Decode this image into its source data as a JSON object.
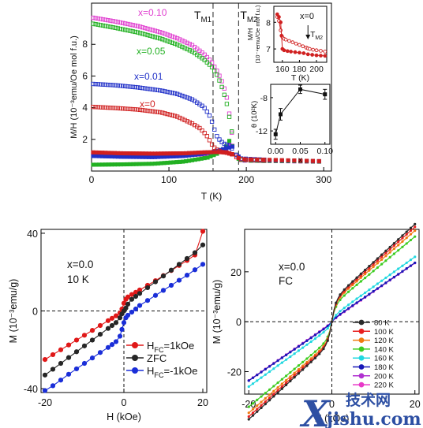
{
  "watermark": {
    "big_letter": "X",
    "cn_text": "技术网",
    "url": "jishu.com",
    "color": "#2d4fa3"
  },
  "chart_data": [
    {
      "type": "scatter",
      "id": "top-main",
      "xlabel": "T (K)",
      "ylabel": "M/H (10⁻³emu/Oe mol f.u.)",
      "xlim": [
        0,
        310
      ],
      "ylim": [
        0,
        10.6
      ],
      "xticks": [
        0,
        100,
        200,
        300
      ],
      "yticks": [
        2,
        4,
        6,
        8
      ],
      "vlines": [
        {
          "x": 157,
          "label": "T",
          "sub": "M1"
        },
        {
          "x": 190,
          "label": "T",
          "sub": "M2"
        }
      ],
      "series": [
        {
          "name": "x=0.10",
          "color": "#e040d0",
          "fc": [
            [
              2,
              9.68
            ],
            [
              30,
              9.45
            ],
            [
              60,
              9.15
            ],
            [
              90,
              8.75
            ],
            [
              110,
              8.4
            ],
            [
              130,
              7.95
            ],
            [
              145,
              7.4
            ],
            [
              155,
              6.9
            ],
            [
              163,
              6.25
            ],
            [
              170,
              5.5
            ],
            [
              175,
              4.6
            ],
            [
              179,
              3.3
            ],
            [
              182,
              2.1
            ],
            [
              185,
              1.2
            ],
            [
              190,
              0.7
            ],
            [
              230,
              0.62
            ],
            [
              300,
              0.58
            ]
          ],
          "zfc": [
            [
              2,
              1.1
            ],
            [
              40,
              1.02
            ],
            [
              80,
              0.98
            ],
            [
              120,
              1.0
            ],
            [
              145,
              1.05
            ],
            [
              165,
              1.2
            ],
            [
              175,
              1.45
            ],
            [
              180,
              1.8
            ],
            [
              184,
              1.4
            ],
            [
              188,
              0.9
            ],
            [
              195,
              0.66
            ],
            [
              300,
              0.58
            ]
          ]
        },
        {
          "name": "x=0.05",
          "color": "#22b022",
          "fc": [
            [
              2,
              9.3
            ],
            [
              30,
              9.05
            ],
            [
              60,
              8.75
            ],
            [
              90,
              8.35
            ],
            [
              110,
              8.0
            ],
            [
              130,
              7.55
            ],
            [
              145,
              7.05
            ],
            [
              155,
              6.6
            ],
            [
              163,
              6.0
            ],
            [
              170,
              5.1
            ],
            [
              175,
              4.2
            ],
            [
              180,
              2.9
            ],
            [
              183,
              1.9
            ],
            [
              186,
              1.1
            ],
            [
              192,
              0.72
            ],
            [
              230,
              0.64
            ],
            [
              300,
              0.6
            ]
          ],
          "zfc": [
            [
              2,
              0.4
            ],
            [
              40,
              0.42
            ],
            [
              80,
              0.46
            ],
            [
              120,
              0.6
            ],
            [
              150,
              0.85
            ],
            [
              165,
              1.15
            ],
            [
              175,
              1.6
            ],
            [
              180,
              2.1
            ],
            [
              183,
              1.3
            ],
            [
              188,
              0.8
            ],
            [
              200,
              0.66
            ],
            [
              300,
              0.6
            ]
          ]
        },
        {
          "name": "x=0.01",
          "color": "#2030c8",
          "fc": [
            [
              2,
              5.5
            ],
            [
              30,
              5.42
            ],
            [
              60,
              5.28
            ],
            [
              90,
              5.08
            ],
            [
              110,
              4.88
            ],
            [
              130,
              4.52
            ],
            [
              145,
              4.05
            ],
            [
              152,
              3.55
            ],
            [
              157,
              2.95
            ],
            [
              160,
              2.4
            ],
            [
              163,
              2.1
            ],
            [
              170,
              1.75
            ],
            [
              178,
              1.6
            ],
            [
              185,
              1.2
            ],
            [
              190,
              0.8
            ],
            [
              230,
              0.7
            ],
            [
              300,
              0.62
            ]
          ],
          "zfc": [
            [
              2,
              0.95
            ],
            [
              40,
              0.9
            ],
            [
              80,
              0.88
            ],
            [
              120,
              0.95
            ],
            [
              145,
              1.1
            ],
            [
              160,
              1.25
            ],
            [
              175,
              1.45
            ],
            [
              183,
              1.55
            ],
            [
              188,
              1.0
            ],
            [
              195,
              0.7
            ],
            [
              300,
              0.62
            ]
          ]
        },
        {
          "name": "x=0",
          "color": "#d02020",
          "fc": [
            [
              2,
              4.05
            ],
            [
              30,
              3.98
            ],
            [
              60,
              3.88
            ],
            [
              90,
              3.7
            ],
            [
              110,
              3.45
            ],
            [
              130,
              3.0
            ],
            [
              140,
              2.7
            ],
            [
              148,
              2.3
            ],
            [
              153,
              1.9
            ],
            [
              157,
              1.55
            ],
            [
              162,
              1.35
            ],
            [
              168,
              1.2
            ],
            [
              175,
              1.15
            ],
            [
              182,
              1.05
            ],
            [
              188,
              0.85
            ],
            [
              195,
              0.72
            ],
            [
              230,
              0.68
            ],
            [
              300,
              0.62
            ]
          ],
          "zfc": [
            [
              2,
              1.18
            ],
            [
              40,
              1.12
            ],
            [
              80,
              1.1
            ],
            [
              120,
              1.12
            ],
            [
              145,
              1.18
            ],
            [
              160,
              1.2
            ],
            [
              175,
              1.18
            ],
            [
              185,
              1.0
            ],
            [
              192,
              0.75
            ],
            [
              300,
              0.62
            ]
          ]
        }
      ]
    },
    {
      "type": "line",
      "id": "inset-top",
      "title": "x=0",
      "xlabel": "T (K)",
      "ylabel": "M/H",
      "ylabel2": "(10⁻⁴emu/Oe mol f.u.)",
      "xlim": [
        150,
        212
      ],
      "ylim": [
        6.5,
        8.6
      ],
      "xticks": [
        160,
        180,
        200
      ],
      "yticks": [
        7,
        8
      ],
      "marker": {
        "label": "T",
        "sub": "M2",
        "x": 190
      },
      "series": [
        {
          "name": "FC",
          "color": "#d02020",
          "fill": "#ffffff",
          "x": [
            154,
            156,
            158,
            160,
            162,
            164,
            168,
            172,
            176,
            180,
            184,
            188,
            190,
            192,
            196,
            200,
            205,
            210
          ],
          "y": [
            8.2,
            8.05,
            7.7,
            7.45,
            7.38,
            7.35,
            7.3,
            7.25,
            7.2,
            7.15,
            7.1,
            7.05,
            7.02,
            7.0,
            6.97,
            6.95,
            6.93,
            6.9
          ]
        },
        {
          "name": "ZFC",
          "color": "#d02020",
          "fill": "#d02020",
          "x": [
            154,
            156,
            158,
            159,
            160,
            162,
            166,
            170,
            175,
            180,
            185,
            190,
            195,
            200,
            205,
            210
          ],
          "y": [
            8.3,
            8.2,
            8.0,
            7.5,
            7.0,
            6.95,
            6.92,
            6.9,
            6.88,
            6.86,
            6.84,
            6.8,
            6.78,
            6.76,
            6.75,
            6.74
          ]
        }
      ]
    },
    {
      "type": "scatter",
      "id": "inset-bottom",
      "xlabel": "x",
      "ylabel": "θ (10²K)",
      "xlim": [
        -0.01,
        0.11
      ],
      "ylim": [
        -13.6,
        -6.4
      ],
      "xticks": [
        0.0,
        0.05,
        0.1
      ],
      "xticklabels": [
        "0.00",
        "0.05",
        "0.10"
      ],
      "yticks": [
        -12,
        -8
      ],
      "points": [
        {
          "x": 0.0,
          "y": -12.4,
          "err": 0.6
        },
        {
          "x": 0.01,
          "y": -10.0,
          "err": 0.7
        },
        {
          "x": 0.05,
          "y": -7.0,
          "err": 0.5
        },
        {
          "x": 0.1,
          "y": -7.6,
          "err": 0.6
        }
      ]
    },
    {
      "type": "line",
      "id": "bottom-left",
      "annotation": [
        "x=0.0",
        "10 K"
      ],
      "xlabel": "H (kOe)",
      "ylabel": "M (10⁻³emu/g)",
      "xlim": [
        -21,
        21
      ],
      "ylim": [
        -42,
        42
      ],
      "xticks": [
        -20,
        0,
        20
      ],
      "yticks": [
        -40,
        0,
        40
      ],
      "series": [
        {
          "name": "H",
          "sub": "FC",
          "suffix": "=1kOe",
          "color": "#e01818",
          "x": [
            -20,
            -18,
            -16,
            -14,
            -12,
            -10,
            -8,
            -6,
            -4,
            -3,
            -2,
            -1,
            -0.5,
            0,
            0.5,
            1,
            2,
            3,
            4,
            6,
            8,
            10,
            12,
            14,
            16,
            18,
            20
          ],
          "y": [
            -25,
            -22.5,
            -20,
            -17.5,
            -15,
            -12.5,
            -10,
            -7.5,
            -5,
            -3.8,
            -2.5,
            -1,
            1,
            4,
            6,
            7.2,
            8.5,
            9.6,
            10.8,
            13.2,
            15.6,
            18.2,
            20.8,
            23.4,
            26,
            28.8,
            41
          ]
        },
        {
          "name": "ZFC",
          "sub": "",
          "suffix": "",
          "color": "#262626",
          "x": [
            -20,
            -18,
            -16,
            -14,
            -12,
            -10,
            -8,
            -6,
            -4,
            -3,
            -2,
            -1,
            -0.5,
            0,
            0.5,
            1,
            2,
            3,
            4,
            6,
            8,
            10,
            12,
            14,
            16,
            18,
            20
          ],
          "y": [
            -33,
            -30,
            -27,
            -24,
            -21,
            -18,
            -15,
            -12,
            -9,
            -7.5,
            -6,
            -3.5,
            -1.5,
            0,
            1.5,
            3.5,
            6,
            7.5,
            9,
            12,
            15,
            18,
            21,
            24,
            27,
            30,
            34
          ]
        },
        {
          "name": "H",
          "sub": "FC",
          "suffix": "=-1kOe",
          "color": "#1a2ed8",
          "x": [
            -20,
            -18,
            -16,
            -14,
            -12,
            -10,
            -8,
            -6,
            -4,
            -3,
            -2,
            -1,
            -0.5,
            0,
            0.5,
            1,
            2,
            3,
            4,
            6,
            8,
            10,
            12,
            14,
            16,
            18,
            20
          ],
          "y": [
            -41,
            -38.5,
            -35.6,
            -32.6,
            -29.8,
            -27,
            -24.2,
            -21.4,
            -18.8,
            -17.3,
            -15.8,
            -13,
            -9.5,
            -6,
            -3.5,
            -2.2,
            -0.6,
            1,
            2.8,
            5.4,
            8,
            10.6,
            13.2,
            15.8,
            18.4,
            21.2,
            24
          ]
        }
      ]
    },
    {
      "type": "line",
      "id": "bottom-right",
      "annotation": [
        "x=0.0",
        "FC"
      ],
      "xlabel": "H (kOe)",
      "ylabel": "M (10⁻³emu/g)",
      "xlim": [
        -21,
        21
      ],
      "ylim": [
        -29,
        37
      ],
      "xticks": [
        -20,
        0,
        20
      ],
      "yticks": [
        -20,
        0,
        20
      ],
      "series": [
        {
          "name": "80 K",
          "color": "#2a2a2a",
          "slope": 1.53,
          "offset": 8.5
        },
        {
          "name": "100 K",
          "color": "#e81e1e",
          "slope": 1.5,
          "offset": 8.0
        },
        {
          "name": "120 K",
          "color": "#f07a10",
          "slope": 1.45,
          "offset": 7.5
        },
        {
          "name": "140 K",
          "color": "#3ccc20",
          "slope": 1.38,
          "offset": 6.5
        },
        {
          "name": "160 K",
          "color": "#20d8e0",
          "slope": 1.2,
          "offset": 2.0
        },
        {
          "name": "180 K",
          "color": "#1818b8",
          "slope": 1.14,
          "offset": 0.8
        },
        {
          "name": "200 K",
          "color": "#b030d0",
          "slope": 1.15,
          "offset": 0.6
        },
        {
          "name": "220 K",
          "color": "#e838c8",
          "slope": 1.15,
          "offset": 0.5
        }
      ]
    }
  ]
}
